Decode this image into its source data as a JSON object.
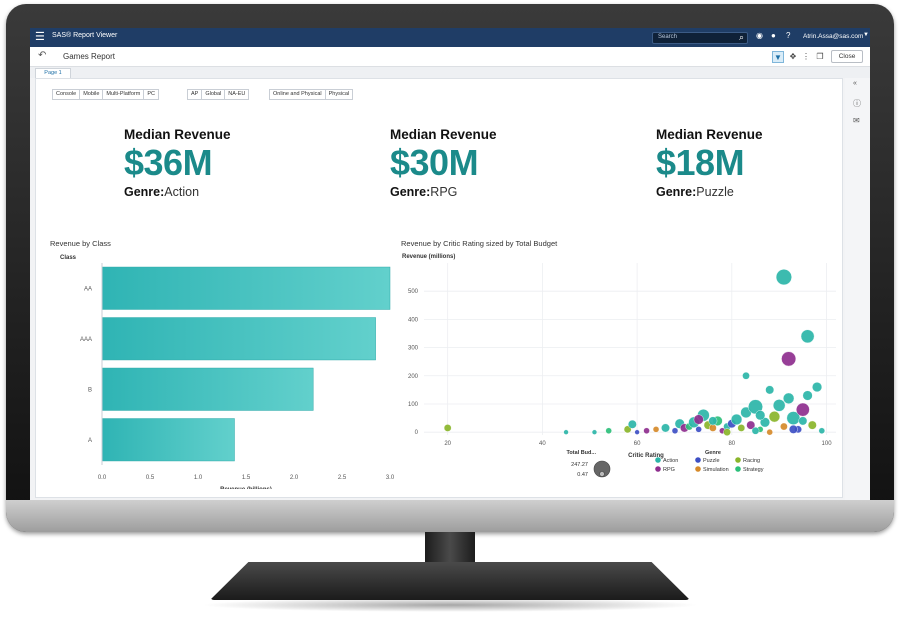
{
  "app": {
    "title": "SAS® Report Viewer",
    "search_placeholder": "Search",
    "user": "Atrin.Assa@sas.com"
  },
  "report": {
    "name": "Games Report",
    "close_label": "Close",
    "tab_label": "Page 1"
  },
  "filters": [
    [
      "Console",
      "Mobile",
      "Multi-Platform",
      "PC"
    ],
    [
      "AP",
      "Global",
      "NA-EU"
    ],
    [
      "Online and Physical",
      "Physical"
    ]
  ],
  "kpis": [
    {
      "label": "Median Revenue",
      "value": "$36M",
      "genre_label": "Genre:",
      "genre": "Action"
    },
    {
      "label": "Median Revenue",
      "value": "$30M",
      "genre_label": "Genre:",
      "genre": "RPG"
    },
    {
      "label": "Median Revenue",
      "value": "$18M",
      "genre_label": "Genre:",
      "genre": "Puzzle"
    }
  ],
  "colors": {
    "teal": "#1b8a8a",
    "bar": "#3ec1c1",
    "topbar": "#1f3d66"
  },
  "chart_data": [
    {
      "type": "bar",
      "orientation": "horizontal",
      "title": "Revenue by Class",
      "ylabel": "Class",
      "xlabel": "Revenue (billions)",
      "categories": [
        "AA",
        "AAA",
        "B",
        "A"
      ],
      "values": [
        3.0,
        2.85,
        2.2,
        1.38
      ],
      "xlim": [
        0,
        3.0
      ],
      "xticks": [
        "0.0",
        "0.5",
        "1.0",
        "1.5",
        "2.0",
        "2.5",
        "3.0"
      ]
    },
    {
      "type": "scatter",
      "title": "Revenue by Critic Rating sized by Total Budget",
      "xlabel": "Critic Rating",
      "ylabel": "Revenue (millions)",
      "xlim": [
        15,
        102
      ],
      "ylim": [
        -10,
        600
      ],
      "xticks": [
        "20",
        "40",
        "60",
        "80",
        "100"
      ],
      "yticks": [
        "0",
        "100",
        "200",
        "300",
        "400",
        "500"
      ],
      "size_legend": {
        "title": "Total Bud...",
        "max": "247.27",
        "min": "0.47"
      },
      "legend_title": "Genre",
      "series": [
        {
          "name": "Action",
          "color": "#2bb5a8"
        },
        {
          "name": "Puzzle",
          "color": "#3d4fc4"
        },
        {
          "name": "Racing",
          "color": "#8ab52a"
        },
        {
          "name": "RPG",
          "color": "#8e2e8e"
        },
        {
          "name": "Simulation",
          "color": "#d68a2a"
        },
        {
          "name": "Strategy",
          "color": "#2cbf7a"
        }
      ],
      "points": [
        [
          20,
          15,
          6,
          2
        ],
        [
          45,
          0,
          4,
          0
        ],
        [
          51,
          0,
          4,
          0
        ],
        [
          54,
          5,
          5,
          5
        ],
        [
          58,
          10,
          6,
          2
        ],
        [
          59,
          28,
          7,
          0
        ],
        [
          60,
          0,
          4,
          1
        ],
        [
          62,
          5,
          5,
          3
        ],
        [
          64,
          10,
          5,
          4
        ],
        [
          66,
          15,
          7,
          0
        ],
        [
          68,
          5,
          5,
          1
        ],
        [
          69,
          30,
          8,
          0
        ],
        [
          70,
          15,
          7,
          3
        ],
        [
          71,
          20,
          6,
          5
        ],
        [
          72,
          35,
          9,
          0
        ],
        [
          73,
          10,
          5,
          1
        ],
        [
          74,
          60,
          10,
          0
        ],
        [
          75,
          25,
          7,
          2
        ],
        [
          76,
          15,
          6,
          4
        ],
        [
          77,
          40,
          8,
          5
        ],
        [
          78,
          5,
          5,
          3
        ],
        [
          79,
          20,
          6,
          0
        ],
        [
          80,
          30,
          7,
          1
        ],
        [
          81,
          45,
          9,
          0
        ],
        [
          82,
          15,
          6,
          2
        ],
        [
          83,
          70,
          9,
          0
        ],
        [
          84,
          25,
          7,
          3
        ],
        [
          85,
          90,
          12,
          0
        ],
        [
          86,
          10,
          5,
          5
        ],
        [
          87,
          35,
          8,
          0
        ],
        [
          88,
          150,
          7,
          0
        ],
        [
          89,
          55,
          9,
          2
        ],
        [
          90,
          95,
          10,
          0
        ],
        [
          91,
          20,
          6,
          4
        ],
        [
          92,
          260,
          12,
          3
        ],
        [
          92,
          120,
          9,
          0
        ],
        [
          93,
          50,
          11,
          0
        ],
        [
          94,
          10,
          6,
          1
        ],
        [
          95,
          80,
          11,
          3
        ],
        [
          96,
          130,
          8,
          0
        ],
        [
          96,
          340,
          11,
          0
        ],
        [
          97,
          25,
          7,
          2
        ],
        [
          98,
          160,
          8,
          0
        ],
        [
          99,
          5,
          5,
          0
        ],
        [
          91,
          550,
          13,
          0
        ],
        [
          83,
          200,
          6,
          0
        ],
        [
          85,
          5,
          6,
          0
        ],
        [
          88,
          0,
          5,
          4
        ],
        [
          93,
          10,
          7,
          1
        ],
        [
          79,
          0,
          6,
          2
        ],
        [
          76,
          40,
          7,
          0
        ],
        [
          73,
          45,
          8,
          3
        ],
        [
          95,
          40,
          7,
          0
        ],
        [
          86,
          60,
          8,
          0
        ]
      ]
    }
  ]
}
